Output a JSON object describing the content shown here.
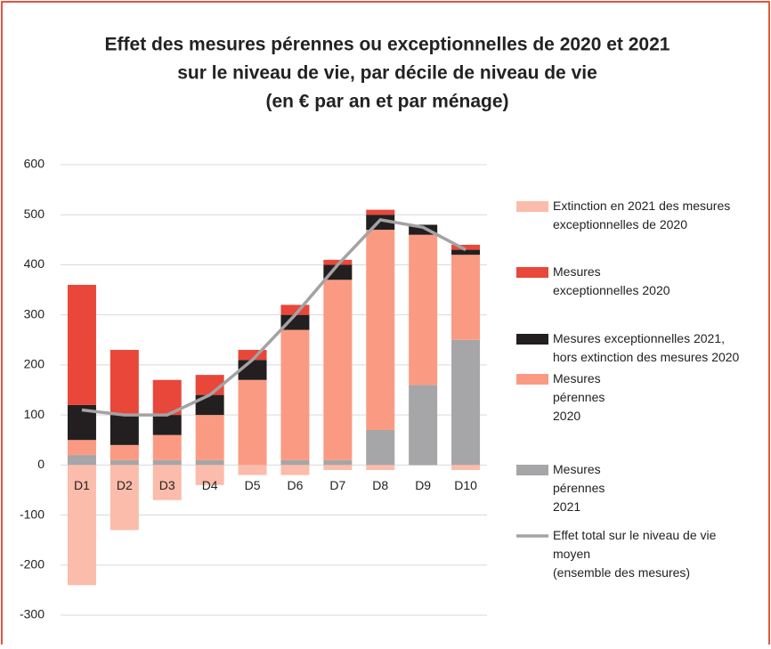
{
  "chart_data": {
    "type": "stacked_bar_line",
    "title": [
      "Effet des mesures pérennes ou exceptionnelles de 2020 et 2021",
      "sur le niveau de vie, par décile de niveau de vie",
      "(en € par an et par ménage)"
    ],
    "categories": [
      "D1",
      "D2",
      "D3",
      "D4",
      "D5",
      "D6",
      "D7",
      "D8",
      "D9",
      "D10"
    ],
    "ylim": [
      -300,
      600
    ],
    "yticks": [
      -300,
      -200,
      -100,
      0,
      100,
      200,
      300,
      400,
      500,
      600
    ],
    "grid": true,
    "series": [
      {
        "name": "Extinction en 2021 des mesures\nexceptionnelles de 2020",
        "type": "bar",
        "color": "#fbbcab",
        "values": [
          -240,
          -130,
          -70,
          -40,
          -20,
          -20,
          -10,
          -10,
          0,
          -10
        ]
      },
      {
        "name": "Mesures\nexceptionnelles 2020",
        "type": "bar",
        "color": "#e8473a",
        "values": [
          240,
          130,
          70,
          40,
          20,
          20,
          10,
          10,
          0,
          10
        ]
      },
      {
        "name": "Mesures exceptionnelles 2021,\nhors extinction des mesures 2020",
        "type": "bar",
        "color": "#231f20",
        "values": [
          70,
          60,
          40,
          40,
          40,
          30,
          30,
          30,
          20,
          10
        ]
      },
      {
        "name": "Mesures\npérennes\n2020",
        "type": "bar",
        "color": "#fb9a82",
        "values": [
          30,
          30,
          50,
          90,
          170,
          260,
          360,
          400,
          300,
          170
        ]
      },
      {
        "name": "Mesures\npérennes\n2021",
        "type": "bar",
        "color": "#a6a5a7",
        "values": [
          20,
          10,
          10,
          10,
          0,
          10,
          10,
          70,
          160,
          250
        ]
      },
      {
        "name": "Effet total sur le niveau de vie\nmoyen\n(ensemble des mesures)",
        "type": "line",
        "color": "#a3a3a3",
        "values": [
          110,
          100,
          100,
          140,
          210,
          300,
          400,
          490,
          475,
          430
        ]
      }
    ]
  }
}
